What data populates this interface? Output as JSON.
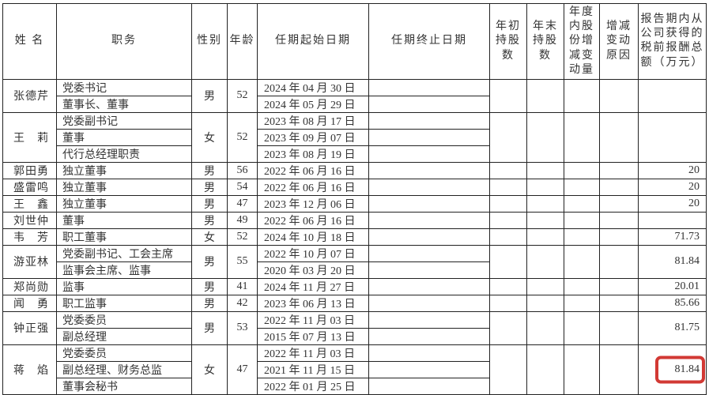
{
  "table": {
    "columns": [
      {
        "key": "name",
        "label": "姓 名"
      },
      {
        "key": "position",
        "label": "职务"
      },
      {
        "key": "gender",
        "label": "性别"
      },
      {
        "key": "age",
        "label": "年龄"
      },
      {
        "key": "term_start",
        "label": "任期起始日期"
      },
      {
        "key": "term_end",
        "label": "任期终止日期"
      },
      {
        "key": "shares_begin",
        "label": "年初持股数"
      },
      {
        "key": "shares_end",
        "label": "年末持股数"
      },
      {
        "key": "share_change",
        "label": "年度内股份增减变动量"
      },
      {
        "key": "change_reason",
        "label": "增减变动原因"
      },
      {
        "key": "compensation",
        "label": "报告期内从公司获得的税前报酬总额（万元）"
      }
    ],
    "people": [
      {
        "name": "张德芹",
        "gender": "男",
        "age": "52",
        "roles": [
          {
            "position": "党委书记",
            "term_start": "2024 年 04 月 30 日",
            "term_end": ""
          },
          {
            "position": "董事长、董事",
            "term_start": "2024 年 05 月 29 日",
            "term_end": ""
          }
        ],
        "shares_begin": "",
        "shares_end": "",
        "share_change": "",
        "change_reason": "",
        "compensation": "",
        "compensation_highlighted": false
      },
      {
        "name": "王　莉",
        "gender": "女",
        "age": "52",
        "roles": [
          {
            "position": "党委副书记",
            "term_start": "2023 年 08 月 17 日",
            "term_end": ""
          },
          {
            "position": "董事",
            "term_start": "2023 年 09 月 07 日",
            "term_end": ""
          },
          {
            "position": "代行总经理职责",
            "term_start": "2023 年 08 月 19 日",
            "term_end": ""
          }
        ],
        "shares_begin": "",
        "shares_end": "",
        "share_change": "",
        "change_reason": "",
        "compensation": "",
        "compensation_highlighted": false
      },
      {
        "name": "郭田勇",
        "gender": "男",
        "age": "56",
        "roles": [
          {
            "position": "独立董事",
            "term_start": "2022 年 06 月 16 日",
            "term_end": ""
          }
        ],
        "shares_begin": "",
        "shares_end": "",
        "share_change": "",
        "change_reason": "",
        "compensation": "20",
        "compensation_highlighted": false
      },
      {
        "name": "盛雷鸣",
        "gender": "男",
        "age": "54",
        "roles": [
          {
            "position": "独立董事",
            "term_start": "2022 年 06 月 16 日",
            "term_end": ""
          }
        ],
        "shares_begin": "",
        "shares_end": "",
        "share_change": "",
        "change_reason": "",
        "compensation": "20",
        "compensation_highlighted": false
      },
      {
        "name": "王　鑫",
        "gender": "男",
        "age": "47",
        "roles": [
          {
            "position": "独立董事",
            "term_start": "2023 年 12 月 06 日",
            "term_end": ""
          }
        ],
        "shares_begin": "",
        "shares_end": "",
        "share_change": "",
        "change_reason": "",
        "compensation": "20",
        "compensation_highlighted": false
      },
      {
        "name": "刘世仲",
        "gender": "男",
        "age": "49",
        "roles": [
          {
            "position": "董事",
            "term_start": "2022 年 06 月 16 日",
            "term_end": ""
          }
        ],
        "shares_begin": "",
        "shares_end": "",
        "share_change": "",
        "change_reason": "",
        "compensation": "",
        "compensation_highlighted": false
      },
      {
        "name": "韦　芳",
        "gender": "女",
        "age": "52",
        "roles": [
          {
            "position": "职工董事",
            "term_start": "2024 年 10 月 18 日",
            "term_end": ""
          }
        ],
        "shares_begin": "",
        "shares_end": "",
        "share_change": "",
        "change_reason": "",
        "compensation": "71.73",
        "compensation_highlighted": false
      },
      {
        "name": "游亚林",
        "gender": "男",
        "age": "55",
        "roles": [
          {
            "position": "党委副书记、工会主席",
            "term_start": "2022 年 10 月 07 日",
            "term_end": ""
          },
          {
            "position": "监事会主席、监事",
            "term_start": "2020 年 03 月 20 日",
            "term_end": ""
          }
        ],
        "shares_begin": "",
        "shares_end": "",
        "share_change": "",
        "change_reason": "",
        "compensation": "81.84",
        "compensation_highlighted": false
      },
      {
        "name": "郑尚勋",
        "gender": "男",
        "age": "41",
        "roles": [
          {
            "position": "监事",
            "term_start": "2024 年 11 月 27 日",
            "term_end": ""
          }
        ],
        "shares_begin": "",
        "shares_end": "",
        "share_change": "",
        "change_reason": "",
        "compensation": "20.01",
        "compensation_highlighted": false
      },
      {
        "name": "闻　勇",
        "gender": "男",
        "age": "42",
        "roles": [
          {
            "position": "职工监事",
            "term_start": "2023 年 06 月 13 日",
            "term_end": ""
          }
        ],
        "shares_begin": "",
        "shares_end": "",
        "share_change": "",
        "change_reason": "",
        "compensation": "85.66",
        "compensation_highlighted": false
      },
      {
        "name": "钟正强",
        "gender": "男",
        "age": "53",
        "roles": [
          {
            "position": "党委委员",
            "term_start": "2022 年 11 月 03 日",
            "term_end": ""
          },
          {
            "position": "副总经理",
            "term_start": "2015 年 07 月 13 日",
            "term_end": ""
          }
        ],
        "shares_begin": "",
        "shares_end": "",
        "share_change": "",
        "change_reason": "",
        "compensation": "81.75",
        "compensation_highlighted": false
      },
      {
        "name": "蒋　焰",
        "gender": "女",
        "age": "47",
        "roles": [
          {
            "position": "党委委员",
            "term_start": "2022 年 11 月 03 日",
            "term_end": ""
          },
          {
            "position": "副总经理、财务总监",
            "term_start": "2021 年 11 月 15 日",
            "term_end": ""
          },
          {
            "position": "董事会秘书",
            "term_start": "2022 年 01 月 25 日",
            "term_end": ""
          }
        ],
        "shares_begin": "",
        "shares_end": "",
        "share_change": "",
        "change_reason": "",
        "compensation": "81.84",
        "compensation_highlighted": true
      }
    ]
  },
  "highlight": {
    "box_color": "#d23934"
  }
}
